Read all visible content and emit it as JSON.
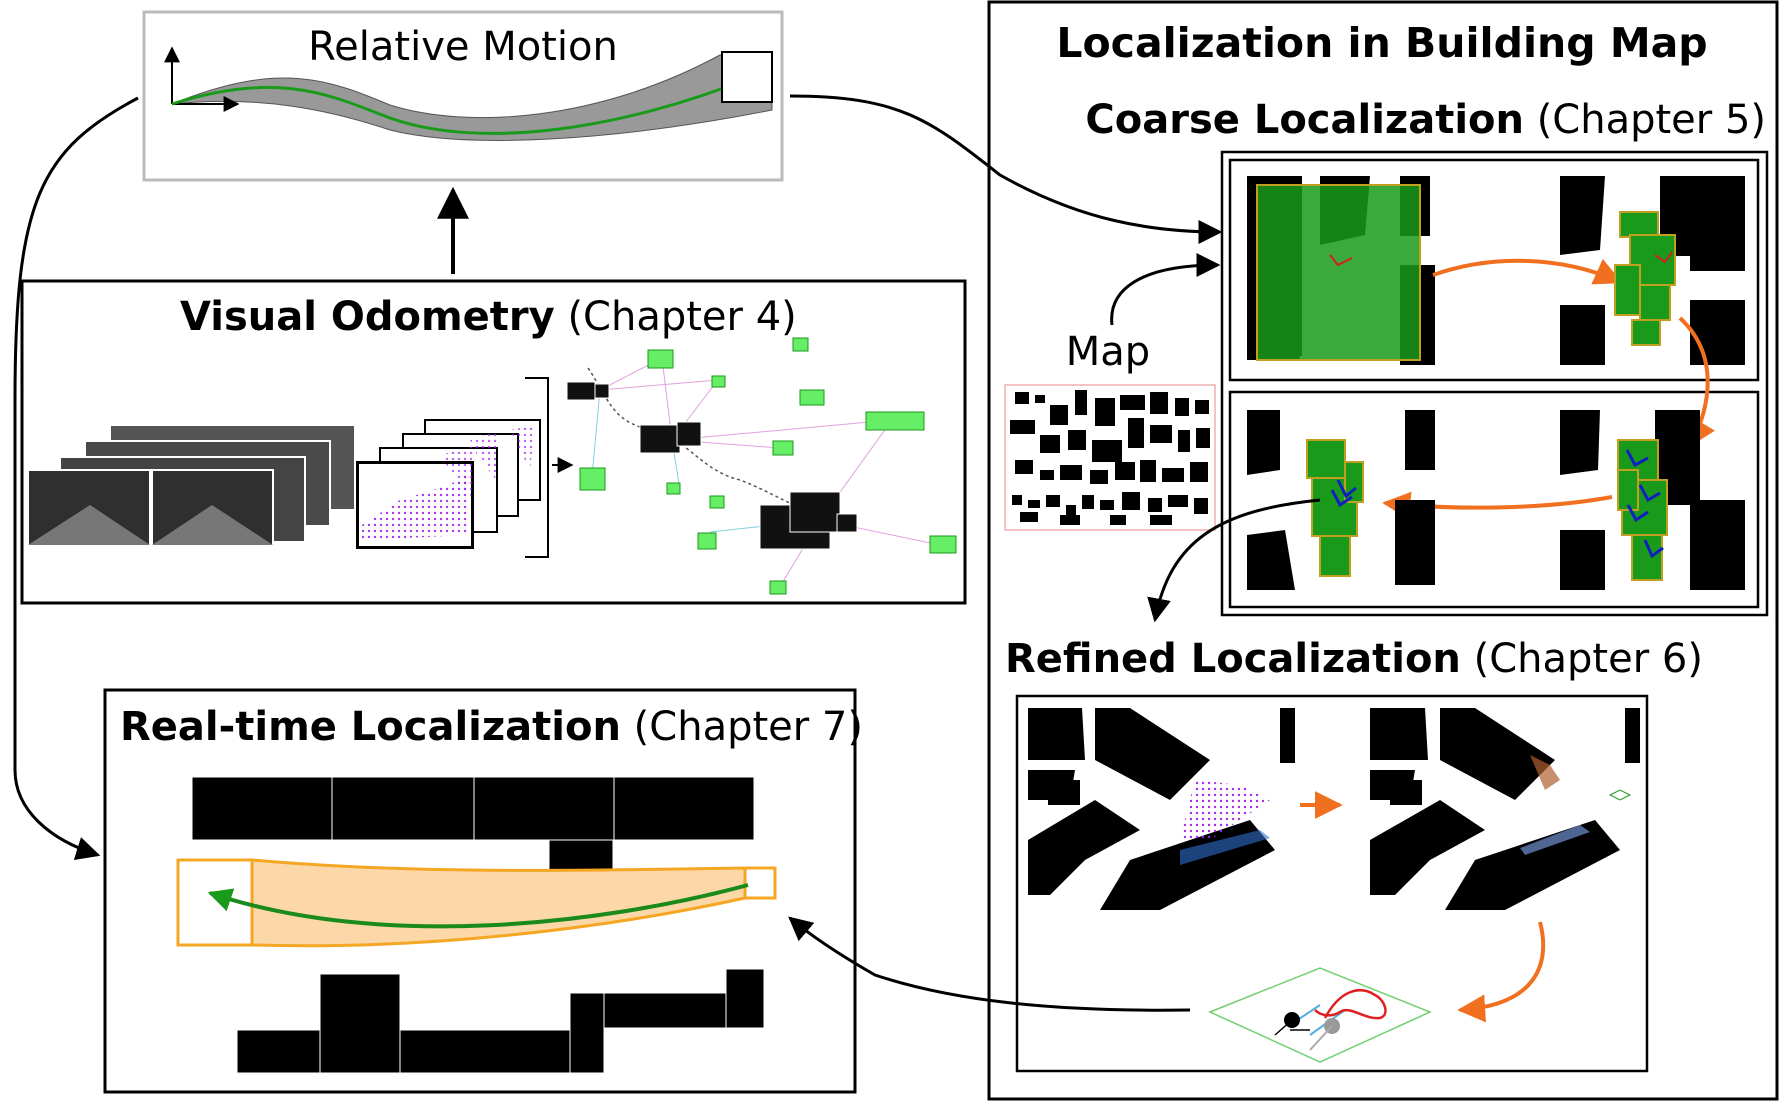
{
  "relative_motion": {
    "title": "Relative Motion"
  },
  "visual_odometry": {
    "title_bold": "Visual Odometry",
    "title_rest": " (Chapter 4)"
  },
  "realtime": {
    "title_bold": "Real-time Localization",
    "title_rest": " (Chapter 7)"
  },
  "building_map": {
    "title": "Localization in Building Map",
    "coarse_bold": "Coarse Localization",
    "coarse_rest": " (Chapter 5)",
    "map_label": "Map",
    "refined_bold": "Refined Localization",
    "refined_rest": " (Chapter 6)"
  },
  "colors": {
    "green": "#1a9a1a",
    "orange": "#f07020",
    "gold": "#f5a623",
    "purple": "#a020f0",
    "frame_gray": "#bbbbbb"
  }
}
